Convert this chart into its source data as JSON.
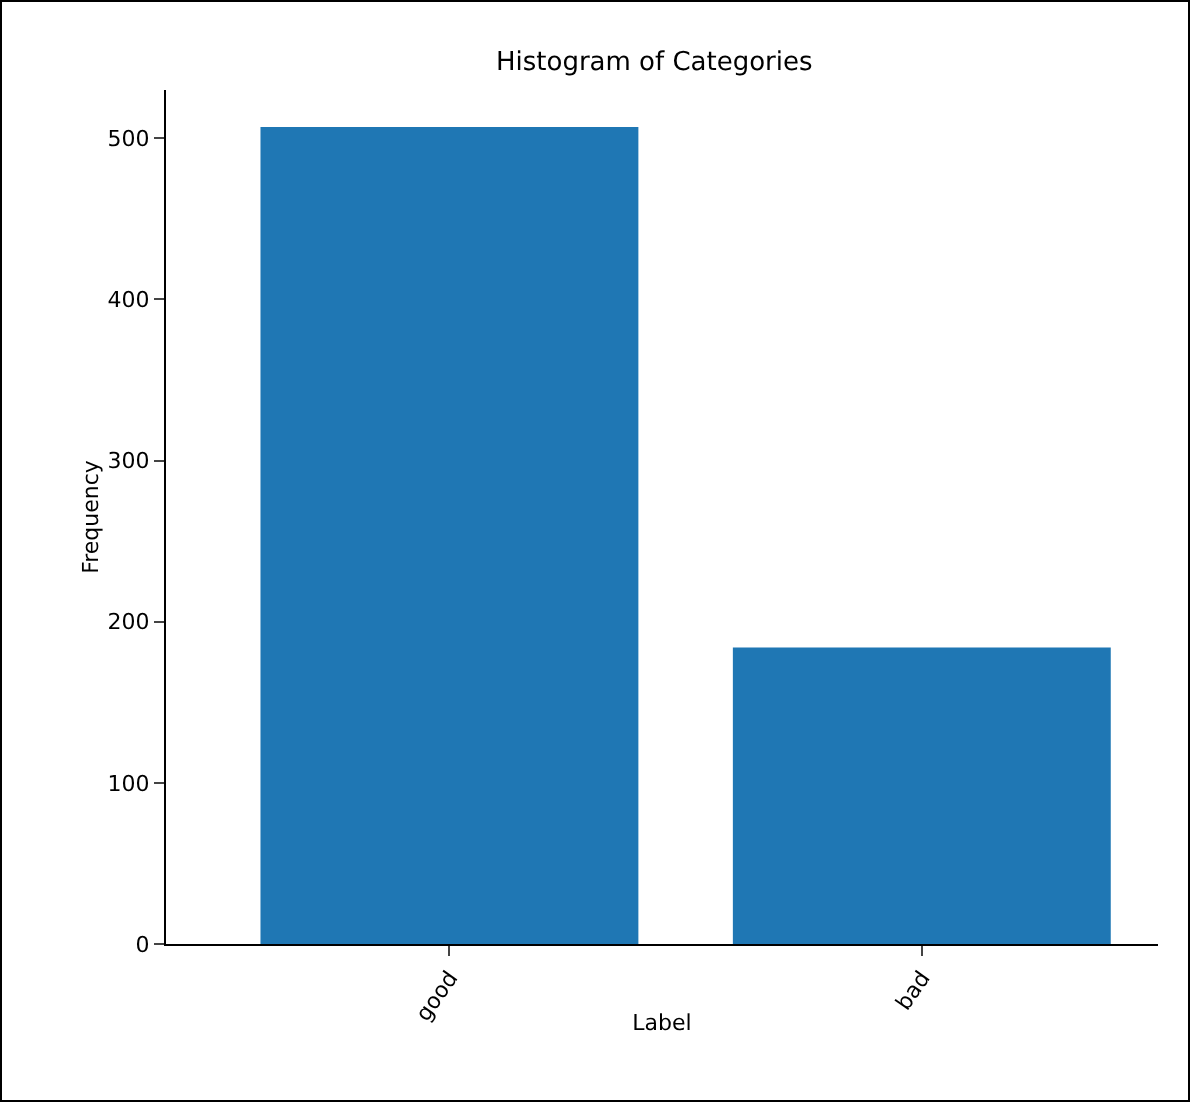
{
  "chart_data": {
    "type": "bar",
    "title": "Histogram of Categories",
    "xlabel": "Label",
    "ylabel": "Frequency",
    "categories": [
      "good",
      "bad"
    ],
    "values": [
      507,
      184
    ],
    "color": "#1f77b4",
    "ylim": [
      0,
      530
    ],
    "yticks": [
      0,
      100,
      200,
      300,
      400,
      500
    ],
    "grid": false,
    "legend": false
  }
}
